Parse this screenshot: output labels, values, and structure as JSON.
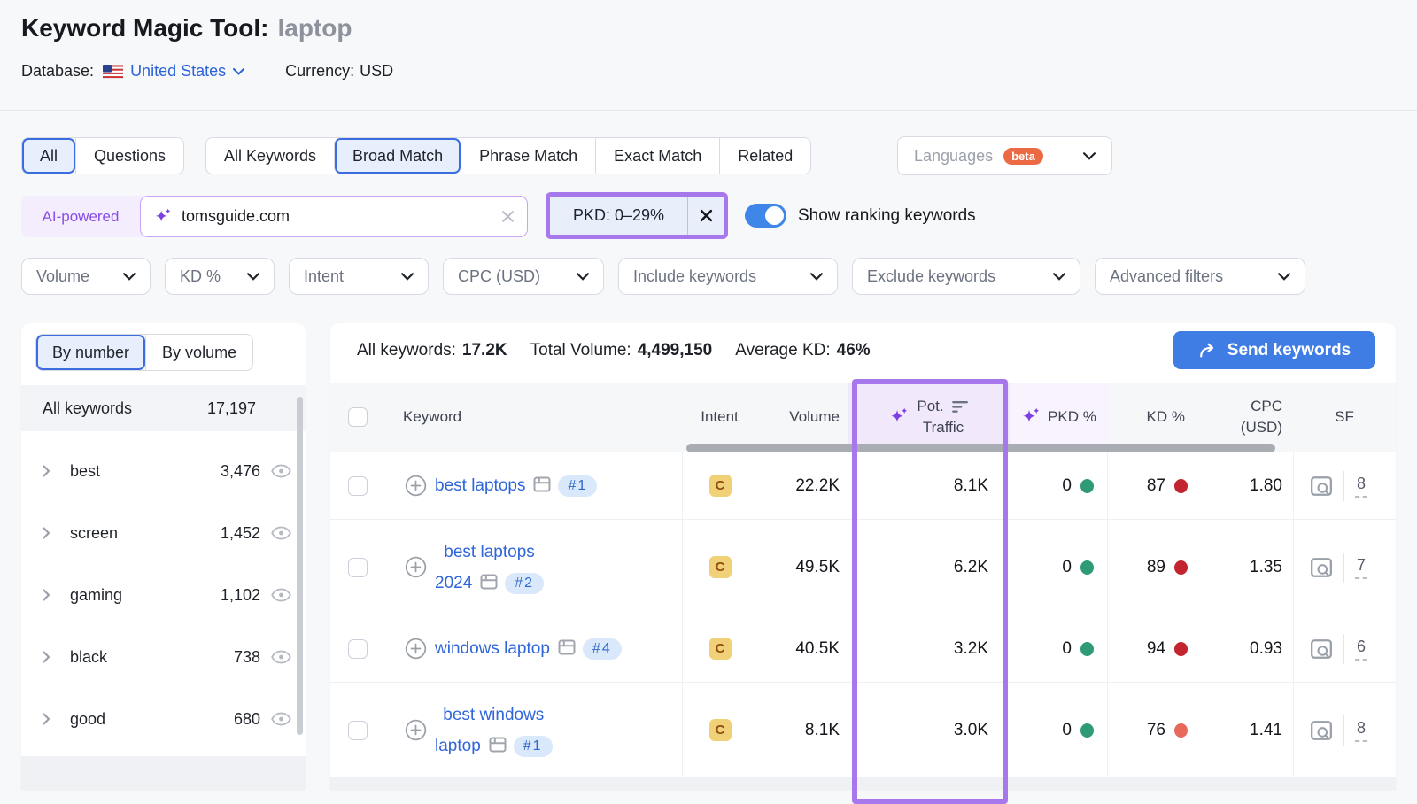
{
  "header": {
    "title": "Keyword Magic Tool:",
    "seed_keyword": "laptop",
    "database_label": "Database:",
    "database_value": "United States",
    "currency_label": "Currency:",
    "currency_value": "USD"
  },
  "tabs": {
    "question_group": {
      "items": [
        "All",
        "Questions"
      ],
      "selected": 0
    },
    "match_group": {
      "items": [
        "All Keywords",
        "Broad Match",
        "Phrase Match",
        "Exact Match",
        "Related"
      ],
      "selected": 1
    },
    "languages": {
      "label": "Languages",
      "badge": "beta"
    }
  },
  "search": {
    "ai_label": "AI-powered",
    "value": "tomsguide.com",
    "pkd_filter_chip": "PKD: 0–29%",
    "toggle_label": "Show ranking keywords",
    "toggle_state": "on"
  },
  "filters": [
    "Volume",
    "KD %",
    "Intent",
    "CPC (USD)",
    "Include keywords",
    "Exclude keywords",
    "Advanced filters"
  ],
  "sidebar": {
    "tabs": {
      "items": [
        "By number",
        "By volume"
      ],
      "selected": 0
    },
    "all_keywords": {
      "label": "All keywords",
      "count": "17,197"
    },
    "groups": [
      {
        "label": "best",
        "count": "3,476"
      },
      {
        "label": "screen",
        "count": "1,452"
      },
      {
        "label": "gaming",
        "count": "1,102"
      },
      {
        "label": "black",
        "count": "738"
      },
      {
        "label": "good",
        "count": "680"
      }
    ]
  },
  "table": {
    "summary": [
      {
        "label": "All keywords:",
        "value": "17.2K"
      },
      {
        "label": "Total Volume:",
        "value": "4,499,150"
      },
      {
        "label": "Average KD:",
        "value": "46%"
      }
    ],
    "send_button": "Send keywords",
    "columns": {
      "keyword": "Keyword",
      "intent": "Intent",
      "volume": "Volume",
      "pot_traffic_line1": "Pot.",
      "pot_traffic_line2": "Traffic",
      "pkd": "PKD %",
      "kd": "KD %",
      "cpc_line1": "CPC",
      "cpc_line2": "(USD)",
      "sf": "SF"
    },
    "rows": [
      {
        "keyword": "best laptops",
        "rank": "#1",
        "intent": "C",
        "volume": "22.2K",
        "pot_traffic": "8.1K",
        "pkd": "0",
        "pkd_dot": "#2f9b76",
        "kd": "87",
        "kd_dot": "#c2252f",
        "cpc": "1.80",
        "sf": "8"
      },
      {
        "keyword": "best laptops\n2024",
        "rank": "#2",
        "intent": "C",
        "volume": "49.5K",
        "pot_traffic": "6.2K",
        "pkd": "0",
        "pkd_dot": "#2f9b76",
        "kd": "89",
        "kd_dot": "#c2252f",
        "cpc": "1.35",
        "sf": "7"
      },
      {
        "keyword": "windows laptop",
        "rank": "#4",
        "intent": "C",
        "volume": "40.5K",
        "pot_traffic": "3.2K",
        "pkd": "0",
        "pkd_dot": "#2f9b76",
        "kd": "94",
        "kd_dot": "#c2252f",
        "cpc": "0.93",
        "sf": "6"
      },
      {
        "keyword": "best windows\nlaptop",
        "rank": "#1",
        "intent": "C",
        "volume": "8.1K",
        "pot_traffic": "3.0K",
        "pkd": "0",
        "pkd_dot": "#2f9b76",
        "kd": "76",
        "kd_dot": "#e8695c",
        "cpc": "1.41",
        "sf": "8"
      }
    ]
  },
  "colors": {
    "annotation_purple": "#a678ec",
    "accent_blue": "#3f7ce3",
    "link_blue": "#2b63d9",
    "selected_tab_border": "#3d6ce0",
    "ai_purple": "#7d3fe0",
    "beta_orange": "#eb6a43",
    "intent_commercial_bg": "#f1d178",
    "intent_commercial_text": "#8f4d12",
    "pkd_green_dot": "#2f9b76",
    "kd_red_dot": "#c2252f",
    "kd_light_red_dot": "#e8695c"
  },
  "icons": {
    "us-flag-icon": "US flag",
    "sparkles-icon": "AI sparkles",
    "sort-desc-icon": "sorted descending bars",
    "serp-features-icon": "SERP window",
    "serp-preview-icon": "SERP preview magnifier",
    "eye-icon": "watch keyword group",
    "plus-circle-icon": "add keyword",
    "send-arrow-icon": "send arrow",
    "chevron-down-icon": "expand dropdown",
    "chevron-right-icon": "expand group",
    "close-icon": "clear / remove"
  }
}
